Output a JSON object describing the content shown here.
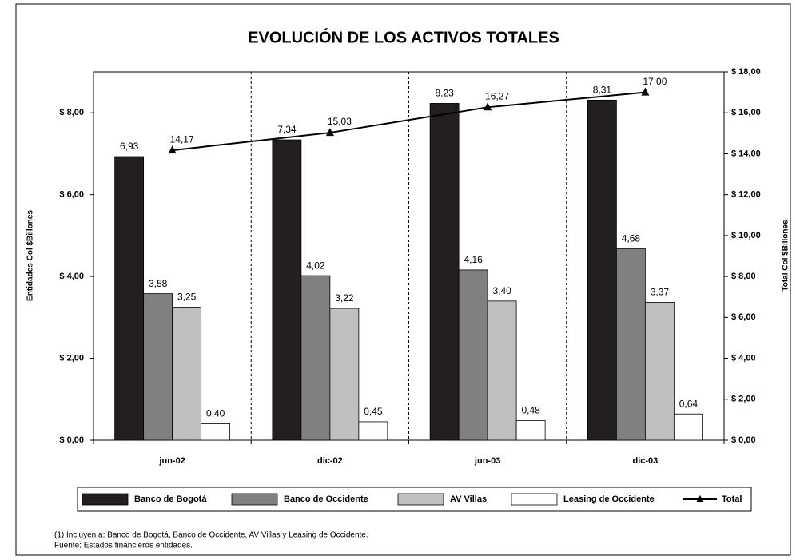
{
  "chart_data": {
    "type": "bar",
    "title": "EVOLUCIÓN DE LOS ACTIVOS TOTALES",
    "y_label": "Entidades  Col $Billones",
    "y2_label": "Total  Col $Billones",
    "categories": [
      "jun-02",
      "dic-02",
      "jun-03",
      "dic-03"
    ],
    "series": [
      {
        "name": "Banco de Bogotá",
        "color": "#231f20",
        "values": [
          6.93,
          7.34,
          8.23,
          8.31
        ],
        "value_labels": [
          "6,93",
          "7,34",
          "8,23",
          "8,31"
        ]
      },
      {
        "name": "Banco de Occidente",
        "color": "#808080",
        "values": [
          3.58,
          4.02,
          4.16,
          4.68
        ],
        "value_labels": [
          "3,58",
          "4,02",
          "4,16",
          "4,68"
        ]
      },
      {
        "name": "AV Villas",
        "color": "#c0c0c0",
        "values": [
          3.25,
          3.22,
          3.4,
          3.37
        ],
        "value_labels": [
          "3,25",
          "3,22",
          "3,40",
          "3,37"
        ]
      },
      {
        "name": "Leasing de Occidente",
        "color": "#ffffff",
        "values": [
          0.4,
          0.45,
          0.48,
          0.64
        ],
        "value_labels": [
          "0,40",
          "0,45",
          "0,48",
          "0,64"
        ]
      },
      {
        "name": "Total",
        "color": "#000000",
        "type": "line",
        "axis": "y2",
        "values": [
          14.17,
          15.03,
          16.27,
          17.0
        ],
        "value_labels": [
          "14,17",
          "15,03",
          "16,27",
          "17,00"
        ]
      }
    ],
    "ylim": [
      0,
      9
    ],
    "yticks": [
      {
        "value": 0,
        "label": "$ 0,00"
      },
      {
        "value": 2,
        "label": "$ 2,00"
      },
      {
        "value": 4,
        "label": "$ 4,00"
      },
      {
        "value": 6,
        "label": "$ 6,00"
      },
      {
        "value": 8,
        "label": "$ 8,00"
      }
    ],
    "y2lim": [
      0,
      18
    ],
    "y2ticks": [
      {
        "value": 0,
        "label": "$ 0,00"
      },
      {
        "value": 2,
        "label": "$ 2,00"
      },
      {
        "value": 4,
        "label": "$ 4,00"
      },
      {
        "value": 6,
        "label": "$ 6,00"
      },
      {
        "value": 8,
        "label": "$ 8,00"
      },
      {
        "value": 10,
        "label": "$ 10,00"
      },
      {
        "value": 12,
        "label": "$ 12,00"
      },
      {
        "value": 14,
        "label": "$ 14,00"
      },
      {
        "value": 16,
        "label": "$ 16,00"
      },
      {
        "value": 18,
        "label": "$ 18,00"
      }
    ],
    "notes": [
      "(1) Incluyen a: Banco de Bogotá, Banco de Occidente, AV Villas y Leasing de Occidente.",
      "Fuente: Estados financieros entidades."
    ]
  }
}
